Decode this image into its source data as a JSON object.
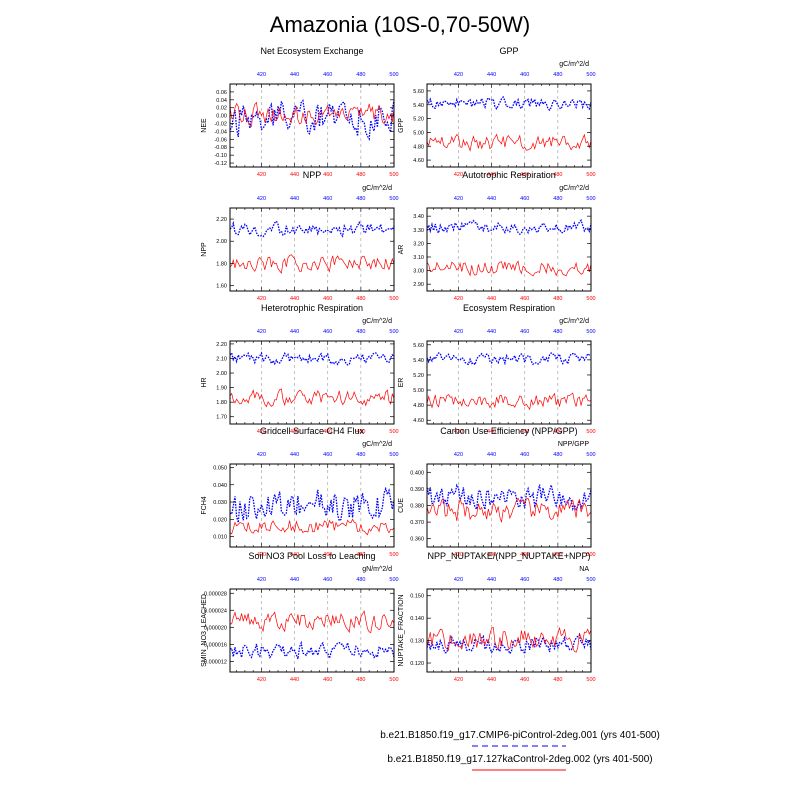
{
  "figure": {
    "title": "Amazonia (10S-0,70-50W)",
    "colors": {
      "case1": "#0000ff",
      "case2": "#ff0000",
      "grid": "#999999",
      "axis": "#000000"
    }
  },
  "legend": {
    "case1_label": "b.e21.B1850.f19_g17.CMIP6-piControl-2deg.001 (yrs 401-500)",
    "case2_label": "b.e21.B1850.f19_g17.127kaControl-2deg.002 (yrs 401-500)"
  },
  "chart_data": [
    {
      "type": "line",
      "title": "Net Ecosystem Exchange",
      "ylabel": "NEE",
      "units": "",
      "xlim": [
        401,
        500
      ],
      "ylim": [
        -0.13,
        0.08
      ],
      "yticks": [
        0.06,
        0.04,
        0.02,
        0.0,
        -0.02,
        -0.04,
        -0.06,
        -0.08,
        -0.1,
        -0.12
      ],
      "ytick_labels": [
        "0.06",
        "0.04",
        "0.02",
        "0.00",
        "-0.02",
        "-0.04",
        "-0.06",
        "-0.08",
        "-0.10",
        "-0.12"
      ],
      "xticks": [
        420,
        440,
        460,
        480,
        500
      ],
      "xtick_labels": [
        "420",
        "440",
        "460",
        "480",
        "500"
      ],
      "series": [
        {
          "name": "case1",
          "mean": -0.005,
          "amp": 0.06,
          "seed": 11
        },
        {
          "name": "case2",
          "mean": 0.005,
          "amp": 0.035,
          "seed": 12
        }
      ]
    },
    {
      "type": "line",
      "title": "GPP",
      "ylabel": "GPP",
      "units": "gC/m^2/d",
      "xlim": [
        401,
        500
      ],
      "ylim": [
        4.5,
        5.7
      ],
      "yticks": [
        5.6,
        5.4,
        5.2,
        5.0,
        4.8,
        4.6
      ],
      "ytick_labels": [
        "5.60",
        "5.40",
        "5.20",
        "5.00",
        "4.80",
        "4.60"
      ],
      "xticks": [
        420,
        440,
        460,
        480,
        500
      ],
      "xtick_labels": [
        "420",
        "440",
        "460",
        "480",
        "500"
      ],
      "series": [
        {
          "name": "case1",
          "mean": 5.42,
          "amp": 0.12,
          "seed": 21
        },
        {
          "name": "case2",
          "mean": 4.85,
          "amp": 0.15,
          "seed": 22
        }
      ]
    },
    {
      "type": "line",
      "title": "NPP",
      "ylabel": "NPP",
      "units": "gC/m^2/d",
      "xlim": [
        401,
        500
      ],
      "ylim": [
        1.55,
        2.3
      ],
      "yticks": [
        2.2,
        2.0,
        1.8,
        1.6
      ],
      "ytick_labels": [
        "2.20",
        "2.00",
        "1.80",
        "1.60"
      ],
      "xticks": [
        420,
        440,
        460,
        480,
        500
      ],
      "xtick_labels": [
        "420",
        "440",
        "460",
        "480",
        "500"
      ],
      "series": [
        {
          "name": "case1",
          "mean": 2.11,
          "amp": 0.08,
          "seed": 31
        },
        {
          "name": "case2",
          "mean": 1.8,
          "amp": 0.1,
          "seed": 32
        }
      ]
    },
    {
      "type": "line",
      "title": "Autotrophic Respiration",
      "ylabel": "AR",
      "units": "gC/m^2/d",
      "xlim": [
        401,
        500
      ],
      "ylim": [
        2.85,
        3.46
      ],
      "yticks": [
        3.4,
        3.3,
        3.2,
        3.1,
        3.0,
        2.9
      ],
      "ytick_labels": [
        "3.40",
        "3.30",
        "3.20",
        "3.10",
        "3.00",
        "2.90"
      ],
      "xticks": [
        420,
        440,
        460,
        480,
        500
      ],
      "xtick_labels": [
        "420",
        "440",
        "460",
        "480",
        "500"
      ],
      "series": [
        {
          "name": "case1",
          "mean": 3.32,
          "amp": 0.06,
          "seed": 41
        },
        {
          "name": "case2",
          "mean": 3.02,
          "amp": 0.07,
          "seed": 42
        }
      ]
    },
    {
      "type": "line",
      "title": "Heterotrophic Respiration",
      "ylabel": "HR",
      "units": "gC/m^2/d",
      "xlim": [
        401,
        500
      ],
      "ylim": [
        1.65,
        2.22
      ],
      "yticks": [
        2.2,
        2.1,
        2.0,
        1.9,
        1.8,
        1.7
      ],
      "ytick_labels": [
        "2.20",
        "2.10",
        "2.00",
        "1.90",
        "1.80",
        "1.70"
      ],
      "xticks": [
        420,
        440,
        460,
        480,
        500
      ],
      "xtick_labels": [
        "420",
        "440",
        "460",
        "480",
        "500"
      ],
      "series": [
        {
          "name": "case1",
          "mean": 2.1,
          "amp": 0.05,
          "seed": 51
        },
        {
          "name": "case2",
          "mean": 1.83,
          "amp": 0.07,
          "seed": 52
        }
      ]
    },
    {
      "type": "line",
      "title": "Ecosystem Respiration",
      "ylabel": "ER",
      "units": "gC/m^2/d",
      "xlim": [
        401,
        500
      ],
      "ylim": [
        4.55,
        5.65
      ],
      "yticks": [
        5.6,
        5.4,
        5.2,
        5.0,
        4.8,
        4.6
      ],
      "ytick_labels": [
        "5.60",
        "5.40",
        "5.20",
        "5.00",
        "4.80",
        "4.60"
      ],
      "xticks": [
        420,
        440,
        460,
        480,
        500
      ],
      "xtick_labels": [
        "420",
        "440",
        "460",
        "480",
        "500"
      ],
      "series": [
        {
          "name": "case1",
          "mean": 5.42,
          "amp": 0.1,
          "seed": 61
        },
        {
          "name": "case2",
          "mean": 4.85,
          "amp": 0.13,
          "seed": 62
        }
      ]
    },
    {
      "type": "line",
      "title": "Gridcell Surface CH4 Flux",
      "ylabel": "FCH4",
      "units": "gC/m^2/d",
      "xlim": [
        401,
        500
      ],
      "ylim": [
        0.004,
        0.052
      ],
      "yticks": [
        0.05,
        0.04,
        0.03,
        0.02,
        0.01
      ],
      "ytick_labels": [
        "0.050",
        "0.040",
        "0.030",
        "0.020",
        "0.010"
      ],
      "xticks": [
        420,
        440,
        460,
        480,
        500
      ],
      "xtick_labels": [
        "420",
        "440",
        "460",
        "480",
        "500"
      ],
      "series": [
        {
          "name": "case1",
          "mean": 0.028,
          "amp": 0.013,
          "seed": 71
        },
        {
          "name": "case2",
          "mean": 0.016,
          "amp": 0.006,
          "seed": 72
        }
      ]
    },
    {
      "type": "line",
      "title": "Carbon Use Efficiency (NPP/GPP)",
      "ylabel": "CUE",
      "units": "NPP/GPP",
      "xlim": [
        401,
        500
      ],
      "ylim": [
        0.355,
        0.405
      ],
      "yticks": [
        0.4,
        0.39,
        0.38,
        0.37,
        0.36
      ],
      "ytick_labels": [
        "0.400",
        "0.390",
        "0.380",
        "0.370",
        "0.360"
      ],
      "xticks": [
        420,
        440,
        460,
        480,
        500
      ],
      "xtick_labels": [
        "420",
        "440",
        "460",
        "480",
        "500"
      ],
      "series": [
        {
          "name": "case1",
          "mean": 0.385,
          "amp": 0.01,
          "seed": 81
        },
        {
          "name": "case2",
          "mean": 0.377,
          "amp": 0.009,
          "seed": 82
        }
      ]
    },
    {
      "type": "line",
      "title": "Soil NO3 Pool Loss to Leaching",
      "ylabel": "SMIN_NO3_LEACHED",
      "units": "gN/m^2/d",
      "xlim": [
        401,
        500
      ],
      "ylim": [
        9.5e-06,
        2.9e-05
      ],
      "yticks": [
        2.8e-05,
        2.4e-05,
        2e-05,
        1.6e-05,
        1.2e-05
      ],
      "ytick_labels": [
        "0.000028",
        "0.000024",
        "0.000020",
        "0.000016",
        "0.000012"
      ],
      "xticks": [
        420,
        440,
        460,
        480,
        500
      ],
      "xtick_labels": [
        "420",
        "440",
        "460",
        "480",
        "500"
      ],
      "series": [
        {
          "name": "case1",
          "mean": 1.45e-05,
          "amp": 2.5e-06,
          "seed": 91
        },
        {
          "name": "case2",
          "mean": 2.12e-05,
          "amp": 3e-06,
          "seed": 92
        }
      ]
    },
    {
      "type": "line",
      "title": "NPP_NUPTAKE/(NPP_NUPTAKE+NPP)",
      "ylabel": "NUPTAKE_FRACTION",
      "units": "NA",
      "xlim": [
        401,
        500
      ],
      "ylim": [
        0.116,
        0.153
      ],
      "yticks": [
        0.15,
        0.14,
        0.13,
        0.12
      ],
      "ytick_labels": [
        "0.150",
        "0.140",
        "0.130",
        "0.120"
      ],
      "xticks": [
        420,
        440,
        460,
        480,
        500
      ],
      "xtick_labels": [
        "420",
        "440",
        "460",
        "480",
        "500"
      ],
      "series": [
        {
          "name": "case1",
          "mean": 0.128,
          "amp": 0.005,
          "seed": 101
        },
        {
          "name": "case2",
          "mean": 0.131,
          "amp": 0.007,
          "seed": 102
        }
      ]
    }
  ]
}
